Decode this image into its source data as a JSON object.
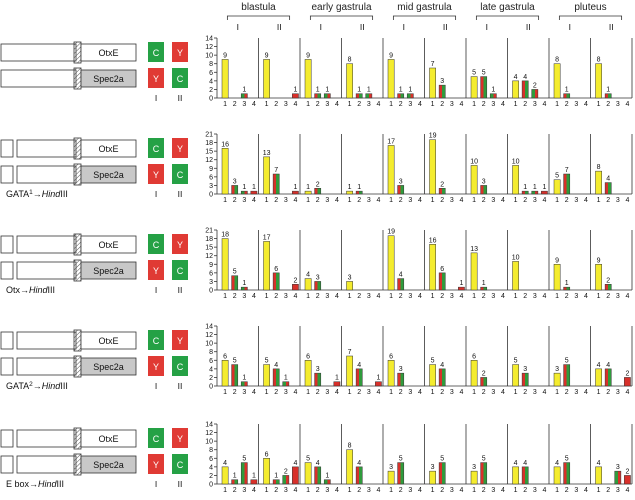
{
  "stages": [
    "blastula",
    "early gastrula",
    "mid gastrula",
    "late gastrula",
    "pluteus"
  ],
  "construct_labels": {
    "top": "OtxE",
    "bottom": "Spec2a"
  },
  "cassette": {
    "col1": "I",
    "col2": "II",
    "top_col1": "C",
    "top_col2": "Y",
    "bottom_col1": "Y",
    "bottom_col2": "C"
  },
  "colors": {
    "yellow": "#f4ec2e",
    "green": "#2f9b3c",
    "red": "#d8302a",
    "box_green": "#25a145",
    "box_red": "#e03a34",
    "spec_gray": "#c8c8c8"
  },
  "bar_categories": [
    "1",
    "2",
    "3",
    "4"
  ],
  "chart_data": [
    {
      "type": "bar",
      "row_label_parts": [],
      "ylim": [
        0,
        14
      ],
      "yticks": [
        "0",
        "2",
        "4",
        "6",
        "8",
        "10",
        "12",
        "14"
      ],
      "panels": [
        {
          "values": [
            9,
            0,
            1,
            0
          ],
          "labels": [
            "9",
            "",
            "1",
            ""
          ]
        },
        {
          "values": [
            9,
            0,
            0,
            1
          ],
          "labels": [
            "9",
            "",
            "",
            "1"
          ]
        },
        {
          "values": [
            9,
            1,
            1,
            0
          ],
          "labels": [
            "9",
            "1",
            "1",
            ""
          ]
        },
        {
          "values": [
            8,
            1,
            1,
            0
          ],
          "labels": [
            "8",
            "1",
            "1",
            ""
          ]
        },
        {
          "values": [
            9,
            1,
            1,
            0
          ],
          "labels": [
            "9",
            "1",
            "1",
            ""
          ]
        },
        {
          "values": [
            7,
            3,
            0,
            0
          ],
          "labels": [
            "7",
            "3",
            "",
            ""
          ]
        },
        {
          "values": [
            5,
            5,
            1,
            0
          ],
          "labels": [
            "5",
            "5",
            "1",
            ""
          ]
        },
        {
          "values": [
            4,
            4,
            2,
            0
          ],
          "labels": [
            "4",
            "4",
            "2",
            ""
          ]
        },
        {
          "values": [
            8,
            1,
            0,
            0
          ],
          "labels": [
            "8",
            "1",
            "",
            ""
          ]
        },
        {
          "values": [
            8,
            1,
            0,
            0
          ],
          "labels": [
            "8",
            "1",
            "",
            ""
          ]
        }
      ]
    },
    {
      "type": "bar",
      "row_label_parts": [
        "GATA",
        "1",
        "→",
        "Hind",
        "III"
      ],
      "ylim": [
        0,
        21
      ],
      "yticks": [
        "0",
        "3",
        "6",
        "9",
        "12",
        "15",
        "18",
        "21"
      ],
      "panels": [
        {
          "values": [
            16,
            3,
            1,
            1
          ],
          "labels": [
            "16",
            "3",
            "1",
            "1"
          ]
        },
        {
          "values": [
            13,
            7,
            0,
            1
          ],
          "labels": [
            "13",
            "7",
            "",
            "1"
          ]
        },
        {
          "values": [
            1,
            2,
            0,
            0
          ],
          "labels": [
            "1",
            "2",
            "",
            ""
          ]
        },
        {
          "values": [
            1,
            1,
            0,
            0
          ],
          "labels": [
            "1",
            "1",
            "",
            ""
          ]
        },
        {
          "values": [
            17,
            3,
            0,
            0
          ],
          "labels": [
            "17",
            "3",
            "",
            ""
          ]
        },
        {
          "values": [
            19,
            2,
            0,
            0
          ],
          "labels": [
            "19",
            "2",
            "",
            ""
          ]
        },
        {
          "values": [
            10,
            3,
            0,
            0
          ],
          "labels": [
            "10",
            "3",
            "",
            ""
          ]
        },
        {
          "values": [
            10,
            1,
            1,
            1
          ],
          "labels": [
            "10",
            "1",
            "1",
            "1"
          ]
        },
        {
          "values": [
            5,
            7,
            0,
            0
          ],
          "labels": [
            "5",
            "7",
            "",
            ""
          ]
        },
        {
          "values": [
            8,
            4,
            0,
            0
          ],
          "labels": [
            "8",
            "4",
            "",
            ""
          ]
        }
      ]
    },
    {
      "type": "bar",
      "row_label_parts": [
        "Otx",
        "",
        "→",
        "Hind",
        "III"
      ],
      "ylim": [
        0,
        21
      ],
      "yticks": [
        "0",
        "3",
        "6",
        "9",
        "12",
        "15",
        "18",
        "21"
      ],
      "panels": [
        {
          "values": [
            18,
            5,
            1,
            0
          ],
          "labels": [
            "18",
            "5",
            "1",
            ""
          ]
        },
        {
          "values": [
            17,
            6,
            0,
            2
          ],
          "labels": [
            "17",
            "6",
            "",
            "2"
          ]
        },
        {
          "values": [
            4,
            3,
            0,
            0
          ],
          "labels": [
            "4",
            "3",
            "",
            ""
          ]
        },
        {
          "values": [
            3,
            0,
            0,
            0
          ],
          "labels": [
            "3",
            "",
            "",
            ""
          ]
        },
        {
          "values": [
            19,
            4,
            0,
            0
          ],
          "labels": [
            "19",
            "4",
            "",
            ""
          ]
        },
        {
          "values": [
            16,
            6,
            0,
            1
          ],
          "labels": [
            "16",
            "6",
            "",
            "1"
          ]
        },
        {
          "values": [
            13,
            1,
            0,
            0
          ],
          "labels": [
            "13",
            "1",
            "",
            ""
          ]
        },
        {
          "values": [
            10,
            0,
            0,
            0
          ],
          "labels": [
            "10",
            "",
            "",
            ""
          ]
        },
        {
          "values": [
            9,
            1,
            0,
            0
          ],
          "labels": [
            "9",
            "1",
            "",
            ""
          ]
        },
        {
          "values": [
            9,
            2,
            0,
            0
          ],
          "labels": [
            "9",
            "2",
            "",
            ""
          ]
        }
      ]
    },
    {
      "type": "bar",
      "row_label_parts": [
        "GATA",
        "2",
        "→",
        "Hind",
        "III"
      ],
      "ylim": [
        0,
        14
      ],
      "yticks": [
        "0",
        "2",
        "4",
        "6",
        "8",
        "10",
        "12",
        "14"
      ],
      "panels": [
        {
          "values": [
            6,
            5,
            1,
            0
          ],
          "labels": [
            "6",
            "5",
            "1",
            ""
          ]
        },
        {
          "values": [
            5,
            4,
            1,
            0
          ],
          "labels": [
            "5",
            "4",
            "1",
            ""
          ]
        },
        {
          "values": [
            6,
            3,
            0,
            1
          ],
          "labels": [
            "6",
            "3",
            "",
            "1"
          ]
        },
        {
          "values": [
            7,
            4,
            0,
            1
          ],
          "labels": [
            "7",
            "4",
            "",
            "1"
          ]
        },
        {
          "values": [
            6,
            3,
            0,
            0
          ],
          "labels": [
            "6",
            "3",
            "",
            ""
          ]
        },
        {
          "values": [
            5,
            4,
            0,
            0
          ],
          "labels": [
            "5",
            "4",
            "",
            ""
          ]
        },
        {
          "values": [
            6,
            2,
            0,
            0
          ],
          "labels": [
            "6",
            "2",
            "",
            ""
          ]
        },
        {
          "values": [
            5,
            3,
            0,
            0
          ],
          "labels": [
            "5",
            "3",
            "",
            ""
          ]
        },
        {
          "values": [
            3,
            5,
            0,
            0
          ],
          "labels": [
            "3",
            "5",
            "",
            ""
          ]
        },
        {
          "values": [
            4,
            4,
            0,
            2
          ],
          "labels": [
            "4",
            "4",
            "",
            "2"
          ]
        }
      ]
    },
    {
      "type": "bar",
      "row_label_parts": [
        "E box",
        "",
        "→",
        "Hind",
        "III"
      ],
      "ylim": [
        0,
        14
      ],
      "yticks": [
        "0",
        "2",
        "4",
        "6",
        "8",
        "10",
        "12",
        "14"
      ],
      "panels": [
        {
          "values": [
            4,
            1,
            5,
            1
          ],
          "labels": [
            "4",
            "1",
            "5",
            "1"
          ]
        },
        {
          "values": [
            6,
            1,
            2,
            4
          ],
          "labels": [
            "6",
            "1",
            "2",
            "4"
          ]
        },
        {
          "values": [
            5,
            4,
            1,
            0
          ],
          "labels": [
            "5",
            "4",
            "1",
            ""
          ]
        },
        {
          "values": [
            8,
            4,
            0,
            0
          ],
          "labels": [
            "8",
            "4",
            "",
            ""
          ]
        },
        {
          "values": [
            3,
            5,
            0,
            0
          ],
          "labels": [
            "3",
            "5",
            "",
            ""
          ]
        },
        {
          "values": [
            3,
            5,
            0,
            0
          ],
          "labels": [
            "3",
            "5",
            "",
            ""
          ]
        },
        {
          "values": [
            3,
            5,
            0,
            0
          ],
          "labels": [
            "3",
            "5",
            "",
            ""
          ]
        },
        {
          "values": [
            4,
            4,
            0,
            0
          ],
          "labels": [
            "4",
            "4",
            "",
            ""
          ]
        },
        {
          "values": [
            4,
            5,
            0,
            0
          ],
          "labels": [
            "4",
            "5",
            "",
            ""
          ]
        },
        {
          "values": [
            4,
            0,
            3,
            2
          ],
          "labels": [
            "4",
            "",
            "3",
            "2"
          ]
        }
      ]
    }
  ]
}
